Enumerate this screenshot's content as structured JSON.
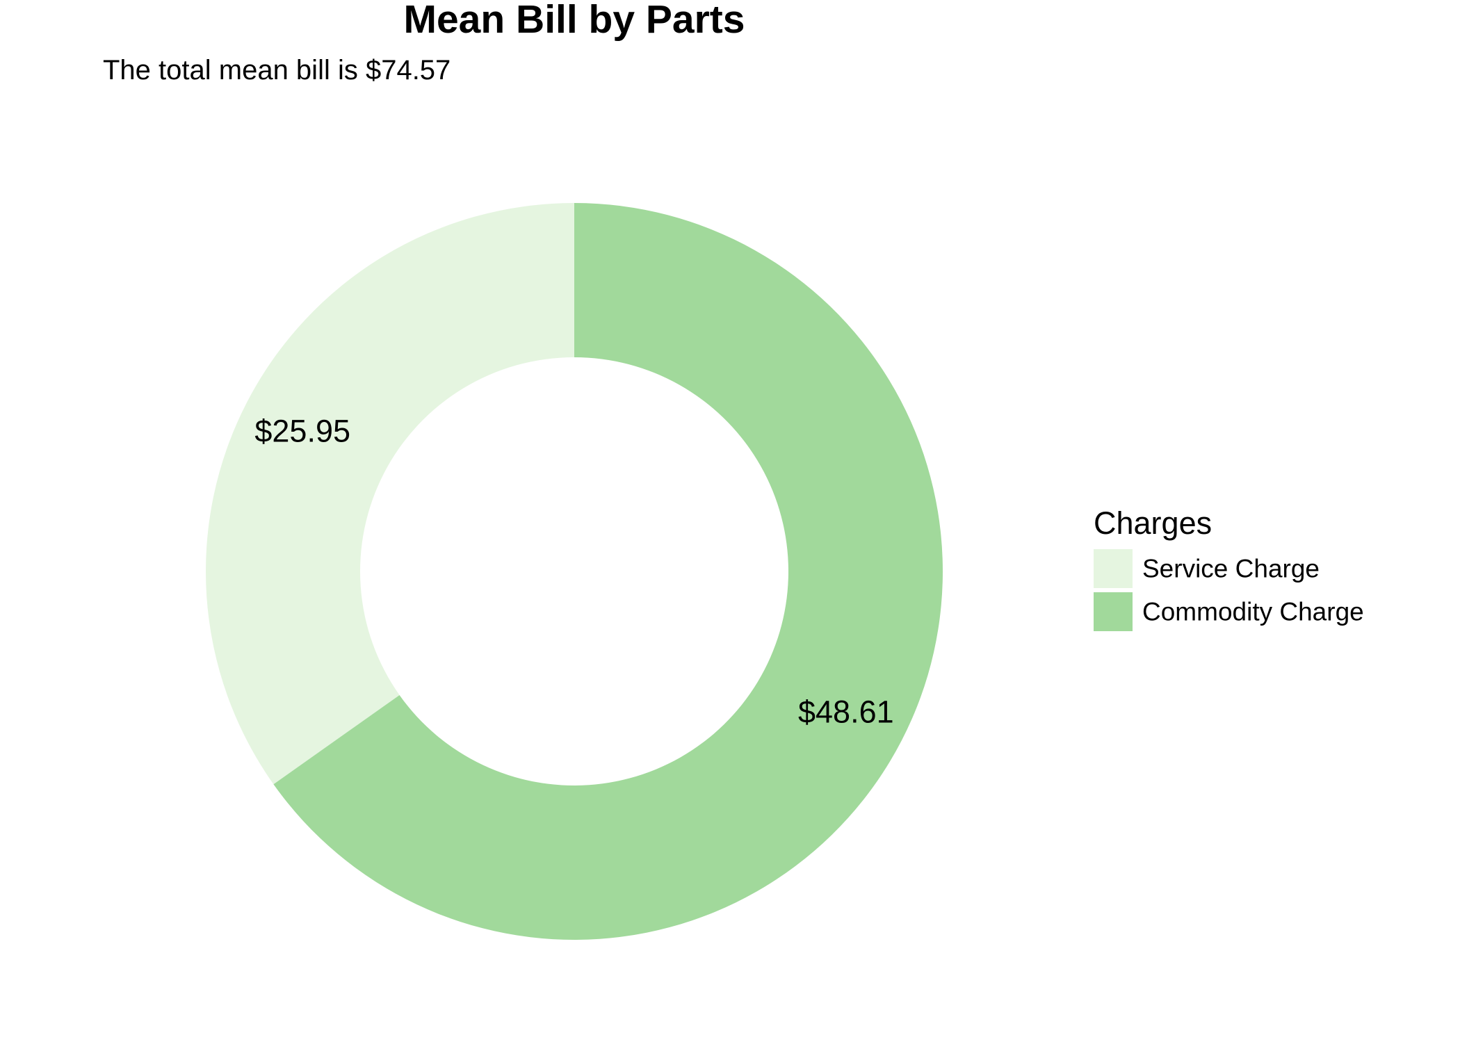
{
  "chart_data": {
    "type": "pie",
    "variant": "donut",
    "title": "Mean Bill by Parts",
    "subtitle": "The total mean bill is $74.57",
    "categories": [
      "Service Charge",
      "Commodity Charge"
    ],
    "values": [
      25.95,
      48.61
    ],
    "labels": [
      "$25.95",
      "$48.61"
    ],
    "colors": [
      "#e5f5e0",
      "#a1d99b"
    ],
    "start": "top",
    "direction": "counterclockwise",
    "legend": {
      "title": "Charges",
      "placement": "right"
    }
  }
}
